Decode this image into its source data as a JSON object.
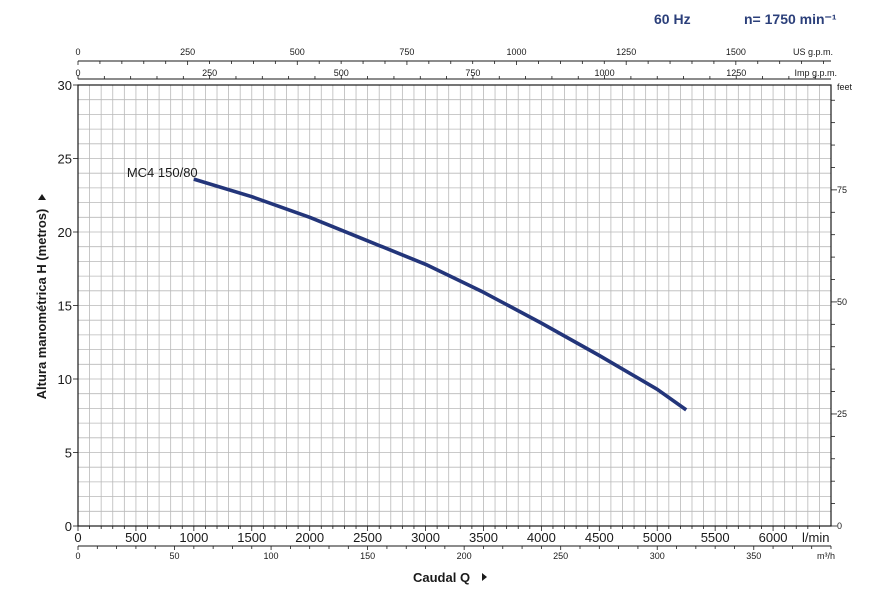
{
  "header": {
    "frequency": "60 Hz",
    "speed": "n= 1750 min⁻¹"
  },
  "chart_data": {
    "type": "line",
    "xlabel": "Caudal Q",
    "ylabel": "Altura manométrica H (metros)",
    "xlim": [
      0,
      6500
    ],
    "ylim": [
      0,
      30
    ],
    "x_unit": "l/min",
    "x_ticks": [
      0,
      500,
      1000,
      1500,
      2000,
      2500,
      3000,
      3500,
      4000,
      4500,
      5000,
      5500,
      6000
    ],
    "y_ticks": [
      0,
      5,
      10,
      15,
      20,
      25,
      30
    ],
    "grid": true,
    "series": [
      {
        "name": "MC4 150/80",
        "color": "#23357a",
        "points": [
          [
            1000,
            23.6
          ],
          [
            1500,
            22.4
          ],
          [
            2000,
            21.0
          ],
          [
            2500,
            19.4
          ],
          [
            3000,
            17.8
          ],
          [
            3500,
            15.9
          ],
          [
            4000,
            13.8
          ],
          [
            4500,
            11.6
          ],
          [
            5000,
            9.3
          ],
          [
            5250,
            7.9
          ]
        ]
      }
    ],
    "secondary_axes": {
      "m3h": {
        "label": "m³/h",
        "ticks": [
          0,
          50,
          100,
          150,
          200,
          250,
          300,
          350
        ],
        "max": 390
      },
      "us_gpm": {
        "label": "US g.p.m.",
        "ticks": [
          0,
          250,
          500,
          750,
          1000,
          1250,
          1500
        ],
        "max": 1717
      },
      "imp_gpm": {
        "label": "Imp g.p.m.",
        "ticks": [
          0,
          250,
          500,
          750,
          1000,
          1250
        ],
        "max": 1430
      },
      "feet": {
        "label": "feet",
        "ticks": [
          0,
          25,
          50,
          75
        ],
        "max": 98.4
      }
    }
  }
}
